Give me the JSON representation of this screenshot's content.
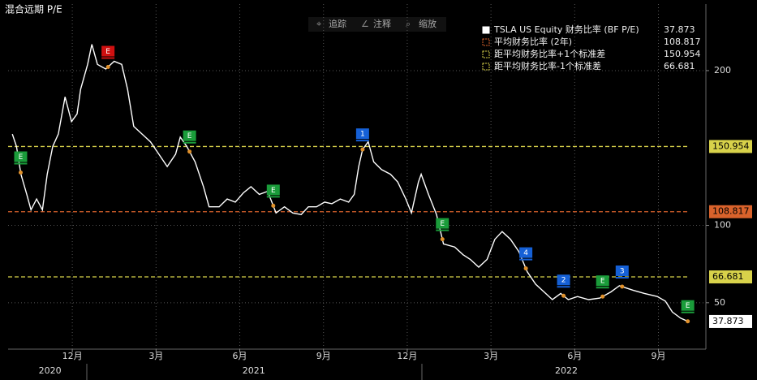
{
  "header": {
    "title": "混合远期 P/E",
    "tools": [
      "追踪",
      "注释",
      "缩放"
    ]
  },
  "chart_data": {
    "type": "line",
    "xlim": [
      -0.3,
      24.7
    ],
    "ylim": [
      20,
      243
    ],
    "grid": true,
    "xticks": [
      {
        "value": 2,
        "label": "12月"
      },
      {
        "value": 5,
        "label": "3月"
      },
      {
        "value": 8,
        "label": "6月"
      },
      {
        "value": 11,
        "label": "9月"
      },
      {
        "value": 14,
        "label": "12月"
      },
      {
        "value": 17,
        "label": "3月"
      },
      {
        "value": 20,
        "label": "6月"
      },
      {
        "value": 23,
        "label": "9月"
      }
    ],
    "year_labels": [
      {
        "value": 1.2,
        "label": "2020"
      },
      {
        "value": 8.5,
        "label": "2021"
      },
      {
        "value": 19.7,
        "label": "2022"
      }
    ],
    "yticks": [
      50,
      100,
      200
    ],
    "series": [
      {
        "name": "TSLA US Equity 财务比率 (BF P/E)",
        "color": "#ffffff",
        "last_value": 37.873,
        "x": [
          -0.15,
          0,
          0.16,
          0.37,
          0.52,
          0.72,
          0.93,
          1.1,
          1.3,
          1.5,
          1.74,
          1.97,
          2.17,
          2.3,
          2.55,
          2.7,
          2.9,
          3.2,
          3.5,
          3.77,
          3.98,
          4.2,
          4.5,
          4.8,
          5.1,
          5.4,
          5.7,
          5.87,
          6.1,
          6.4,
          6.7,
          6.9,
          7.26,
          7.55,
          7.84,
          8.13,
          8.4,
          8.7,
          9.0,
          9.3,
          9.6,
          9.9,
          10.2,
          10.46,
          10.75,
          11.04,
          11.3,
          11.6,
          11.9,
          12.1,
          12.26,
          12.4,
          12.6,
          12.8,
          13.08,
          13.4,
          13.66,
          13.95,
          14.15,
          14.4,
          14.5,
          14.76,
          15.05,
          15.3,
          15.7,
          16,
          16.26,
          16.56,
          16.86,
          17.14,
          17.4,
          17.7,
          18,
          18.3,
          18.6,
          18.9,
          19.2,
          19.5,
          19.77,
          20.1,
          20.5,
          20.9,
          21.3,
          21.6,
          22.1,
          22.5,
          22.96,
          23.25,
          23.5,
          23.8,
          24.05
        ],
        "values": [
          159,
          151,
          133,
          120,
          110,
          117,
          110,
          133,
          151,
          159,
          183,
          167,
          172,
          188,
          204,
          217,
          204,
          201,
          206,
          204,
          188,
          164,
          159,
          154,
          146,
          138,
          146,
          157,
          151,
          141,
          125,
          112,
          112,
          117,
          115,
          121,
          125,
          120,
          122,
          108,
          112,
          108,
          107,
          112,
          112,
          115,
          114,
          117,
          115,
          120,
          138,
          149,
          154,
          141,
          136,
          133,
          128,
          117,
          108,
          128,
          133,
          120,
          107,
          88,
          86,
          81,
          78,
          73,
          78,
          91,
          96,
          91,
          83,
          70,
          62,
          57,
          52,
          56,
          52,
          54,
          52,
          53,
          57,
          61,
          58,
          56,
          54,
          51,
          44,
          40,
          38
        ]
      }
    ],
    "reference_lines": [
      {
        "name": "平均财务比率 (2年)",
        "value": 108.817,
        "color": "#d9622b"
      },
      {
        "name": "距平均财务比率+1个标准差",
        "value": 150.954,
        "color": "#d8d24a"
      },
      {
        "name": "距平均财务比率-1个标准差",
        "value": 66.681,
        "color": "#d8d24a"
      }
    ],
    "events": [
      {
        "label": "E",
        "x": 0.15,
        "color": "#1a9c3a"
      },
      {
        "label": "E",
        "x": 3.28,
        "color": "#d01010"
      },
      {
        "label": "E",
        "x": 6.2,
        "color": "#1a9c3a"
      },
      {
        "label": "E",
        "x": 9.2,
        "color": "#1a9c3a"
      },
      {
        "label": "1",
        "x": 12.4,
        "color": "#1560d6"
      },
      {
        "label": "E",
        "x": 15.26,
        "color": "#1a9c3a"
      },
      {
        "label": "4",
        "x": 18.25,
        "color": "#1560d6"
      },
      {
        "label": "2",
        "x": 19.6,
        "color": "#1560d6"
      },
      {
        "label": "E",
        "x": 21.0,
        "color": "#1a9c3a"
      },
      {
        "label": "3",
        "x": 21.7,
        "color": "#1560d6"
      },
      {
        "label": "E",
        "x": 24.05,
        "color": "#1a9c3a"
      }
    ]
  }
}
